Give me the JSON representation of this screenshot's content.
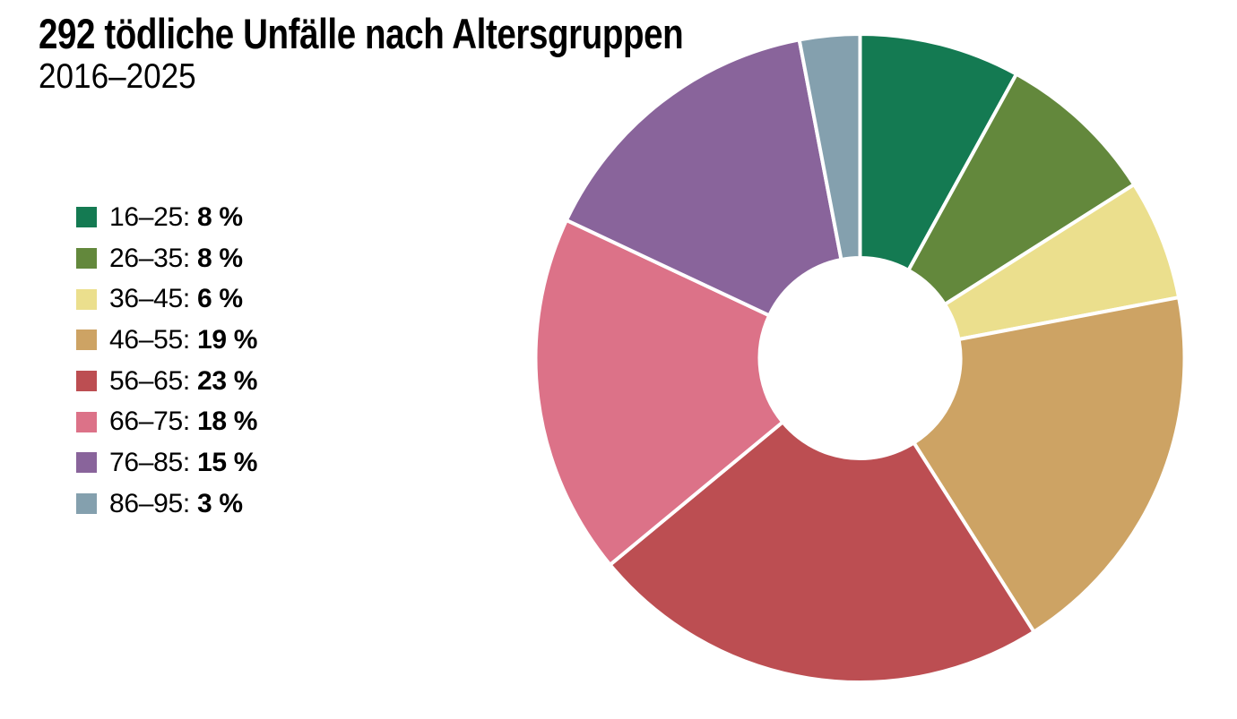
{
  "header": {
    "title": "292 tödliche Unfälle nach Altersgruppen",
    "subtitle": "2016–2025"
  },
  "chart_data": {
    "type": "pie",
    "donut": true,
    "title": "292 tödliche Unfälle nach Altersgruppen",
    "subtitle": "2016–2025",
    "total_accidents": 292,
    "unit": "%",
    "start_angle_deg": 0,
    "direction": "clockwise",
    "legend_position": "left",
    "categories": [
      "16–25",
      "26–35",
      "36–45",
      "46–55",
      "56–65",
      "66–75",
      "76–85",
      "86–95"
    ],
    "values": [
      8,
      8,
      6,
      19,
      23,
      18,
      15,
      3
    ],
    "colors": [
      "#147a52",
      "#63883c",
      "#ebdf8d",
      "#cda364",
      "#bc4e52",
      "#dc7288",
      "#89649b",
      "#84a0ae"
    ],
    "separator_color": "#ffffff"
  },
  "legend": {
    "items": [
      {
        "label": "16–25:",
        "value_label": "8 %",
        "color": "#147a52"
      },
      {
        "label": "26–35:",
        "value_label": "8 %",
        "color": "#63883c"
      },
      {
        "label": "36–45:",
        "value_label": "6 %",
        "color": "#ebdf8d"
      },
      {
        "label": "46–55:",
        "value_label": "19 %",
        "color": "#cda364"
      },
      {
        "label": "56–65:",
        "value_label": "23 %",
        "color": "#bc4e52"
      },
      {
        "label": "66–75:",
        "value_label": "18 %",
        "color": "#dc7288"
      },
      {
        "label": "76–85:",
        "value_label": "15 %",
        "color": "#89649b"
      },
      {
        "label": "86–95:",
        "value_label": "3 %",
        "color": "#84a0ae"
      }
    ]
  }
}
